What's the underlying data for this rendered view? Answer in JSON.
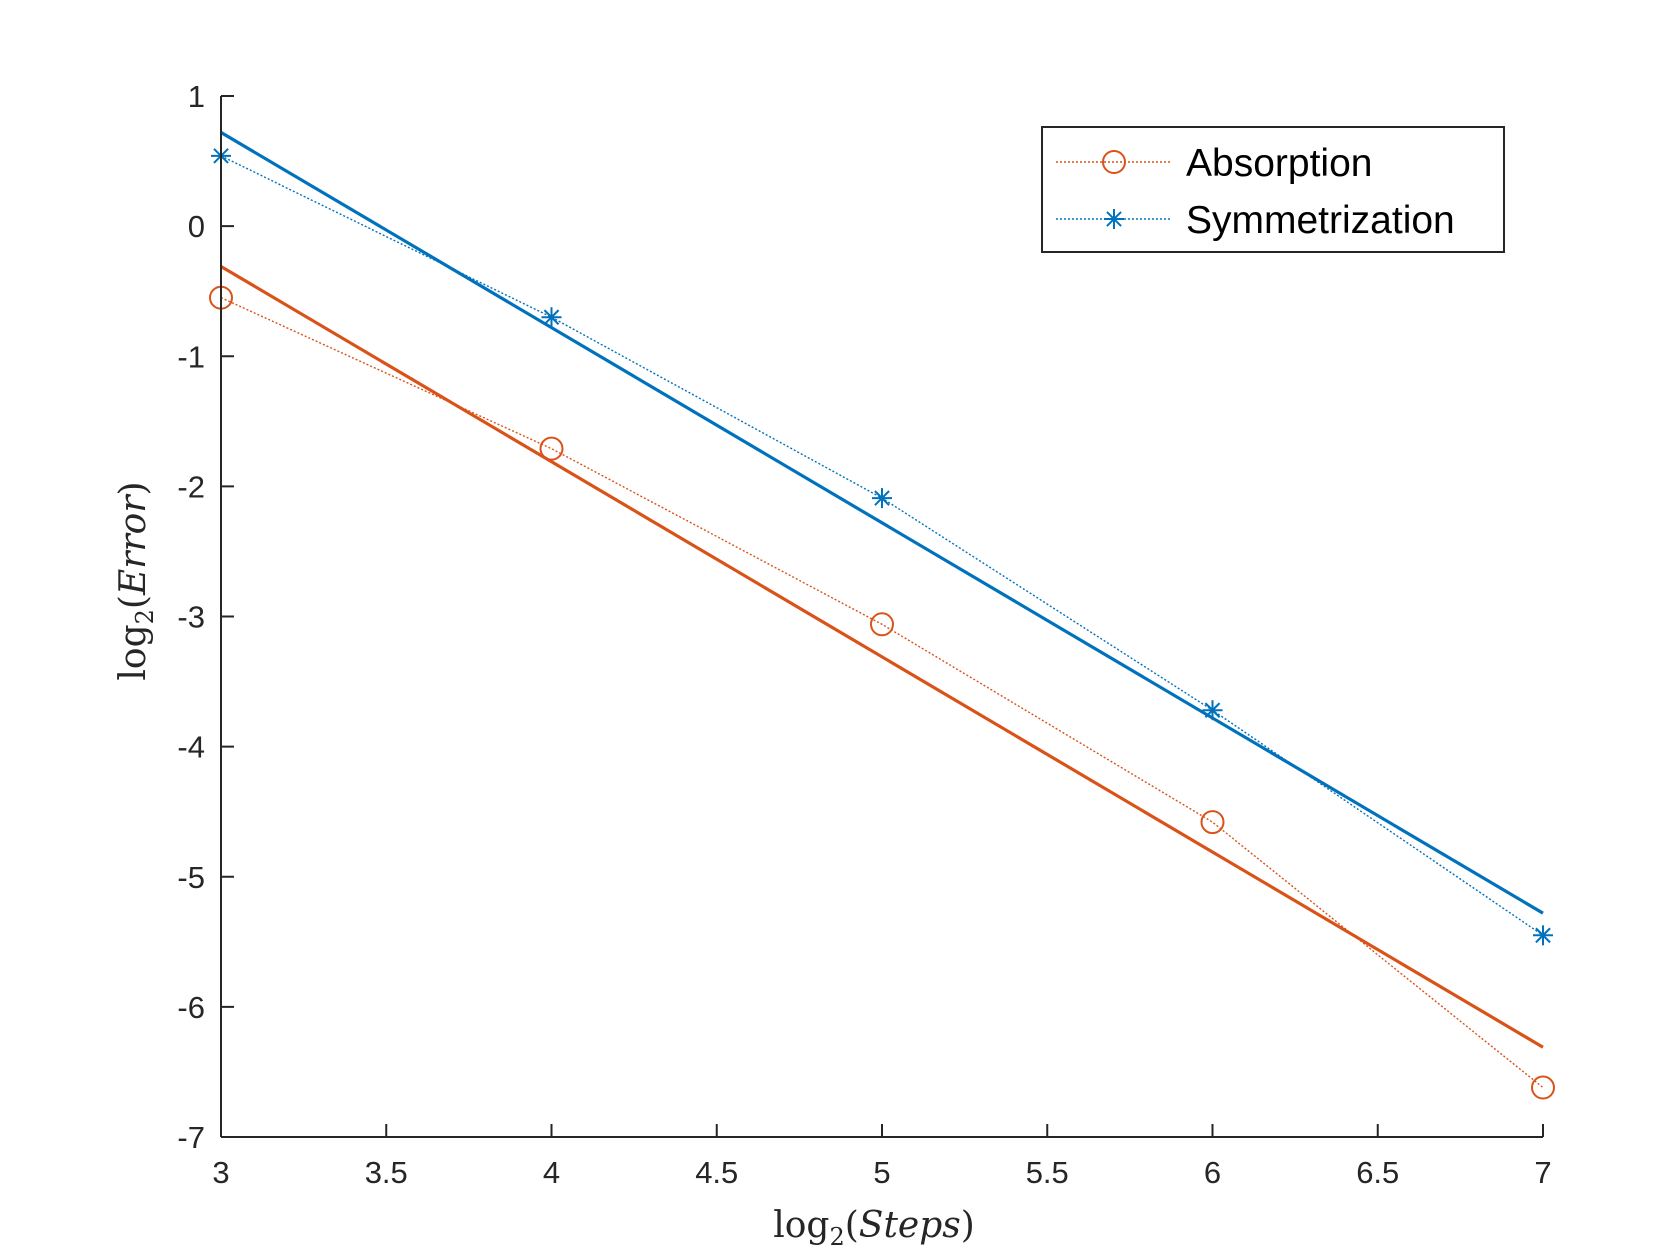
{
  "chart_data": {
    "type": "line",
    "title": "",
    "xlabel": {
      "func": "log",
      "sub": "2",
      "arg": "Steps"
    },
    "ylabel": {
      "func": "log",
      "sub": "2",
      "arg": "Error"
    },
    "xlim": [
      3,
      7
    ],
    "ylim": [
      -7,
      1
    ],
    "xticks": [
      3,
      3.5,
      4,
      4.5,
      5,
      5.5,
      6,
      6.5,
      7
    ],
    "xtick_labels": [
      "3",
      "3.5",
      "4",
      "4.5",
      "5",
      "5.5",
      "6",
      "6.5",
      "7"
    ],
    "yticks": [
      1,
      0,
      -1,
      -2,
      -3,
      -4,
      -5,
      -6,
      -7
    ],
    "ytick_labels": [
      "1",
      "0",
      "-1",
      "-2",
      "-3",
      "-4",
      "-5",
      "-6",
      "-7"
    ],
    "grid": false,
    "legend_position": "top-right",
    "series": [
      {
        "name": "Absorption",
        "color": "#D95319",
        "marker": "circle",
        "line_style": "dotted",
        "x": [
          3,
          4,
          5,
          6,
          7
        ],
        "y": [
          -0.55,
          -1.71,
          -3.06,
          -4.58,
          -6.62
        ],
        "fit": {
          "x": [
            3,
            7
          ],
          "y": [
            -0.31,
            -6.31
          ]
        }
      },
      {
        "name": "Symmetrization",
        "color": "#0072BD",
        "marker": "asterisk",
        "line_style": "dotted",
        "x": [
          3,
          4,
          5,
          6,
          7
        ],
        "y": [
          0.54,
          -0.7,
          -2.09,
          -3.72,
          -5.45
        ],
        "fit": {
          "x": [
            3,
            7
          ],
          "y": [
            0.72,
            -5.28
          ]
        }
      }
    ]
  }
}
